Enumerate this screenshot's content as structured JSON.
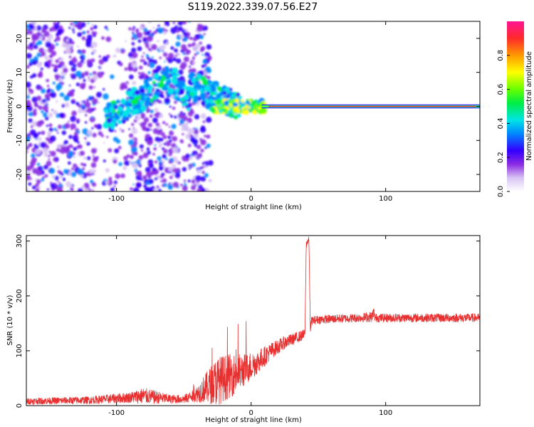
{
  "chart_data": [
    {
      "type": "heatmap",
      "title": "S119.2022.339.07.56.E27",
      "xlabel": "Height of straight line (km)",
      "ylabel": "Frequency (Hz)",
      "xlim": [
        -167,
        170
      ],
      "ylim": [
        -25,
        25
      ],
      "xticks": [
        -100,
        0,
        100
      ],
      "yticks": [
        -20,
        -10,
        0,
        10,
        20
      ],
      "xtick_labels": [
        "-100",
        "0",
        "100"
      ],
      "ytick_labels": [
        "-20",
        "-10",
        "0",
        "10",
        "20"
      ],
      "colorbar": {
        "label": "Normalized spectral amplitude",
        "range": [
          0,
          1
        ],
        "ticks": [
          0.0,
          0.2,
          0.4,
          0.6,
          0.8
        ],
        "tick_labels": [
          "0.0",
          "0.2",
          "0.4",
          "0.6",
          "0.8"
        ]
      },
      "features": {
        "strong_line_frequency_hz": 0,
        "strong_line_start_km": 8,
        "strong_line_end_km": 170,
        "noise_region_km": [
          -167,
          -40
        ]
      }
    },
    {
      "type": "line",
      "xlabel": "Height of straight line (km)",
      "ylabel": "SNR (10 * v/v)",
      "xlim": [
        -167,
        170
      ],
      "ylim": [
        0,
        310
      ],
      "xticks": [
        -100,
        0,
        100
      ],
      "yticks": [
        0,
        100,
        200,
        300
      ],
      "xtick_labels": [
        "-100",
        "0",
        "100"
      ],
      "ytick_labels": [
        "0",
        "100",
        "200",
        "300"
      ],
      "color": "#e83030",
      "profile": {
        "x": [
          -167,
          -120,
          -90,
          -80,
          -70,
          -60,
          -50,
          -42,
          -35,
          -25,
          -15,
          -5,
          5,
          15,
          25,
          35,
          40,
          41,
          42,
          43,
          44,
          45,
          50,
          60,
          80,
          90,
          91,
          92,
          100,
          120,
          140,
          160,
          170
        ],
        "y": [
          8,
          10,
          15,
          18,
          15,
          12,
          12,
          18,
          30,
          45,
          55,
          65,
          80,
          100,
          115,
          125,
          130,
          295,
          300,
          300,
          140,
          155,
          157,
          158,
          160,
          162,
          172,
          160,
          160,
          160,
          160,
          160,
          160
        ],
        "noise": [
          6,
          7,
          10,
          15,
          12,
          8,
          8,
          12,
          25,
          45,
          40,
          30,
          22,
          15,
          12,
          10,
          10,
          8,
          8,
          8,
          10,
          8,
          8,
          8,
          8,
          10,
          10,
          8,
          8,
          8,
          8,
          8,
          8
        ]
      }
    }
  ]
}
